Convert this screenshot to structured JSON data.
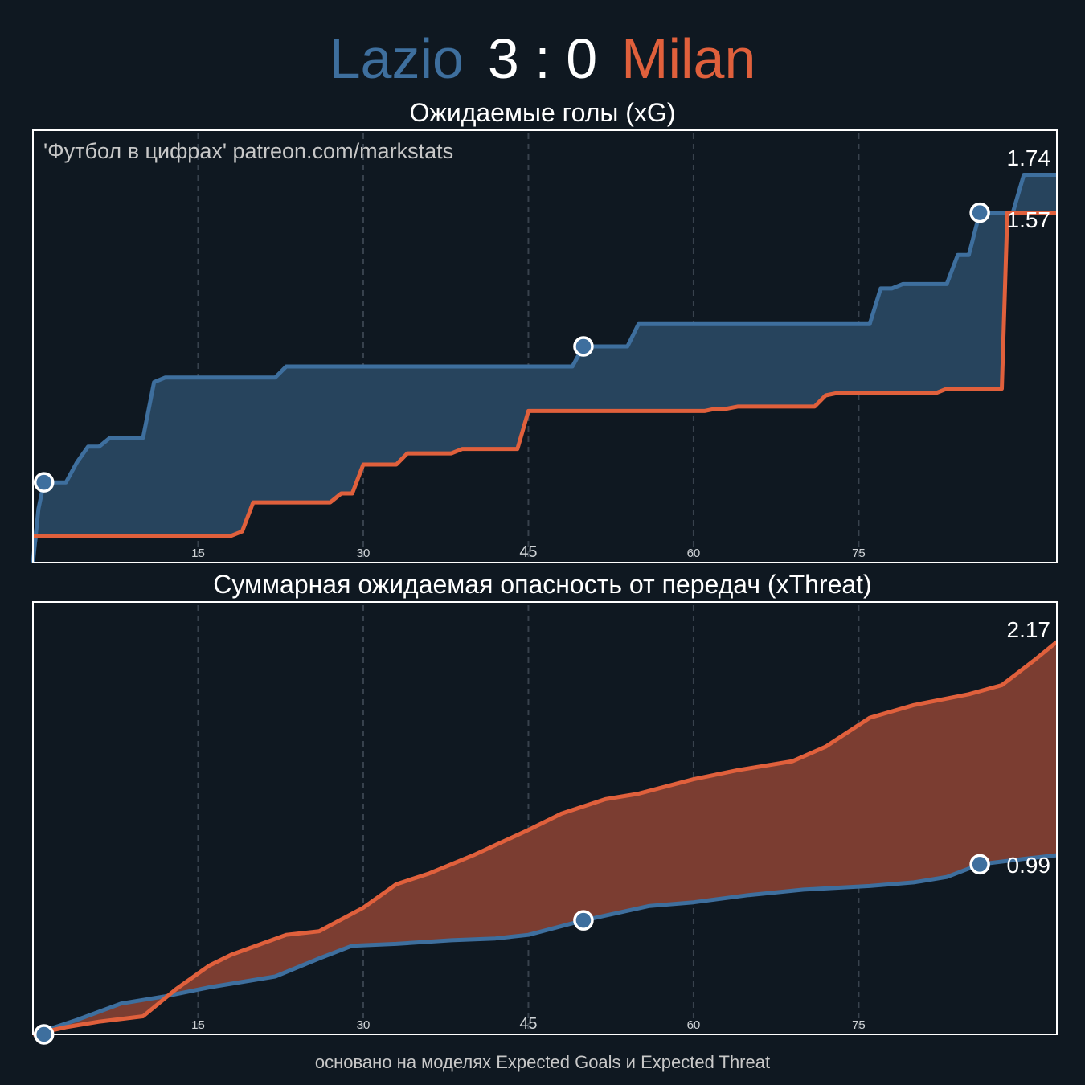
{
  "header": {
    "home": "Lazio",
    "score": "3 : 0",
    "away": "Milan"
  },
  "colors": {
    "home": "#3e6f9e",
    "away": "#e0603c",
    "background": "#0f1821"
  },
  "watermark": "'Футбол в цифрах' patreon.com/markstats",
  "footer": "основано на моделях Expected Goals и Expected Threat",
  "chart_data": [
    {
      "type": "area",
      "title": "Ожидаемые голы (xG)",
      "xlim": [
        0,
        93
      ],
      "ylim": [
        0,
        1.94
      ],
      "x_ticks": [
        "15",
        "30",
        "45",
        "60",
        "75"
      ],
      "grid": "vertical dashed",
      "final_labels": [
        "1.74",
        "1.57"
      ],
      "goals": [
        {
          "team": "Lazio",
          "minute": 1,
          "xg": 0.36
        },
        {
          "team": "Lazio",
          "minute": 50,
          "xg": 0.97
        },
        {
          "team": "Lazio",
          "minute": 86,
          "xg": 1.57
        }
      ],
      "series": [
        {
          "name": "Lazio",
          "points": [
            [
              0,
              0
            ],
            [
              0.5,
              0.24
            ],
            [
              1,
              0.36
            ],
            [
              3,
              0.36
            ],
            [
              4,
              0.45
            ],
            [
              5,
              0.52
            ],
            [
              6,
              0.52
            ],
            [
              7,
              0.56
            ],
            [
              10,
              0.56
            ],
            [
              11,
              0.81
            ],
            [
              12,
              0.83
            ],
            [
              22,
              0.83
            ],
            [
              23,
              0.88
            ],
            [
              49,
              0.88
            ],
            [
              50,
              0.97
            ],
            [
              54,
              0.97
            ],
            [
              55,
              1.07
            ],
            [
              76,
              1.07
            ],
            [
              77,
              1.23
            ],
            [
              78,
              1.23
            ],
            [
              79,
              1.25
            ],
            [
              83,
              1.25
            ],
            [
              84,
              1.38
            ],
            [
              85,
              1.38
            ],
            [
              86,
              1.57
            ],
            [
              89,
              1.57
            ],
            [
              90,
              1.74
            ],
            [
              93,
              1.74
            ]
          ]
        },
        {
          "name": "Milan",
          "points": [
            [
              0,
              0.12
            ],
            [
              18,
              0.12
            ],
            [
              19,
              0.14
            ],
            [
              20,
              0.27
            ],
            [
              27,
              0.27
            ],
            [
              28,
              0.31
            ],
            [
              29,
              0.31
            ],
            [
              30,
              0.44
            ],
            [
              33,
              0.44
            ],
            [
              34,
              0.49
            ],
            [
              38,
              0.49
            ],
            [
              39,
              0.51
            ],
            [
              44,
              0.51
            ],
            [
              45,
              0.68
            ],
            [
              61,
              0.68
            ],
            [
              62,
              0.69
            ],
            [
              63,
              0.69
            ],
            [
              64,
              0.7
            ],
            [
              71,
              0.7
            ],
            [
              72,
              0.75
            ],
            [
              73,
              0.76
            ],
            [
              82,
              0.76
            ],
            [
              83,
              0.78
            ],
            [
              88,
              0.78
            ],
            [
              88.5,
              1.57
            ],
            [
              93,
              1.57
            ]
          ]
        }
      ]
    },
    {
      "type": "area",
      "title": "Суммарная ожидаемая опасность от передач (xThreat)",
      "xlim": [
        0,
        93
      ],
      "ylim": [
        0,
        2.39
      ],
      "x_ticks": [
        "15",
        "30",
        "45",
        "60",
        "75"
      ],
      "grid": "vertical dashed",
      "final_labels": [
        "2.17",
        "0.99"
      ],
      "goals": [
        {
          "team": "Lazio",
          "minute": 1,
          "xt": 0.0
        },
        {
          "team": "Lazio",
          "minute": 50,
          "xt": 0.63
        },
        {
          "team": "Lazio",
          "minute": 86,
          "xt": 0.94
        }
      ],
      "series": [
        {
          "name": "Lazio",
          "points": [
            [
              0,
              0
            ],
            [
              4,
              0.08
            ],
            [
              8,
              0.17
            ],
            [
              12,
              0.21
            ],
            [
              16,
              0.26
            ],
            [
              22,
              0.32
            ],
            [
              26,
              0.42
            ],
            [
              29,
              0.49
            ],
            [
              33,
              0.5
            ],
            [
              38,
              0.52
            ],
            [
              42,
              0.53
            ],
            [
              45,
              0.55
            ],
            [
              50,
              0.63
            ],
            [
              56,
              0.71
            ],
            [
              60,
              0.73
            ],
            [
              65,
              0.77
            ],
            [
              70,
              0.8
            ],
            [
              76,
              0.82
            ],
            [
              80,
              0.84
            ],
            [
              83,
              0.87
            ],
            [
              86,
              0.94
            ],
            [
              90,
              0.97
            ],
            [
              93,
              0.99
            ]
          ]
        },
        {
          "name": "Milan",
          "points": [
            [
              0,
              0
            ],
            [
              3,
              0.04
            ],
            [
              6,
              0.07
            ],
            [
              10,
              0.1
            ],
            [
              13,
              0.25
            ],
            [
              16,
              0.38
            ],
            [
              18,
              0.44
            ],
            [
              23,
              0.55
            ],
            [
              26,
              0.57
            ],
            [
              30,
              0.7
            ],
            [
              33,
              0.83
            ],
            [
              36,
              0.89
            ],
            [
              40,
              0.99
            ],
            [
              45,
              1.13
            ],
            [
              48,
              1.22
            ],
            [
              52,
              1.3
            ],
            [
              55,
              1.33
            ],
            [
              60,
              1.41
            ],
            [
              64,
              1.46
            ],
            [
              69,
              1.51
            ],
            [
              72,
              1.59
            ],
            [
              76,
              1.75
            ],
            [
              80,
              1.82
            ],
            [
              85,
              1.88
            ],
            [
              88,
              1.93
            ],
            [
              91,
              2.07
            ],
            [
              93,
              2.17
            ]
          ]
        }
      ]
    }
  ]
}
